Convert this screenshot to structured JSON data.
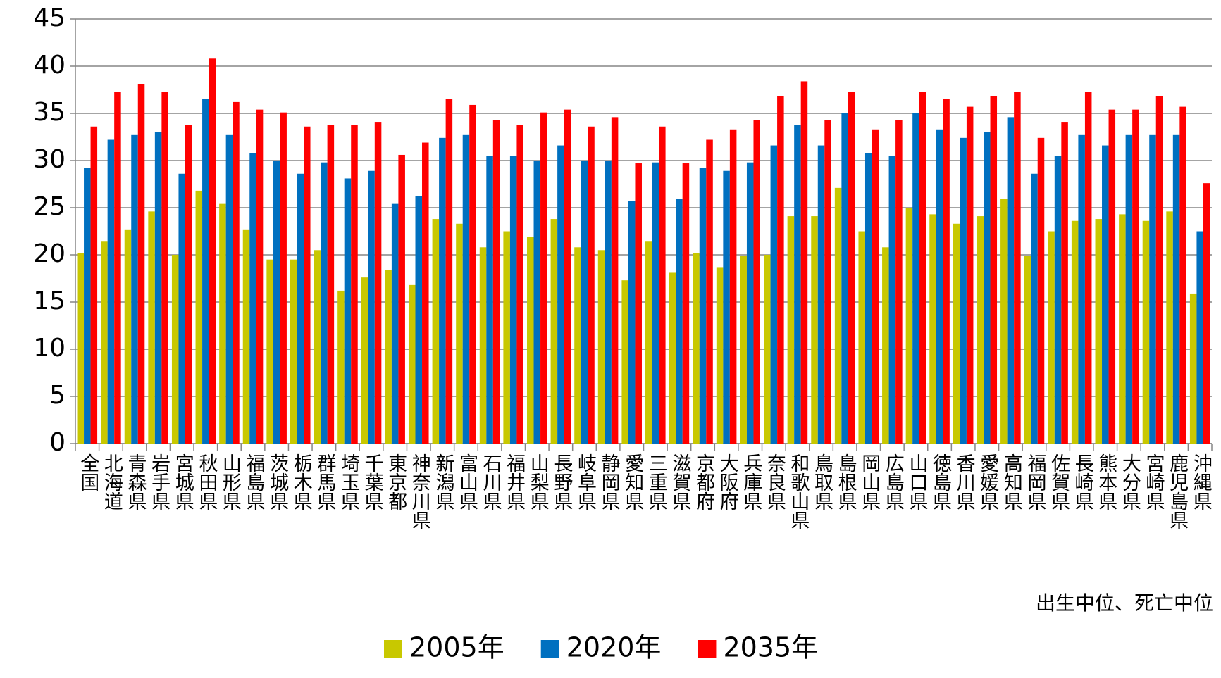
{
  "chart_data": {
    "type": "bar",
    "categories": [
      "全国",
      "北海道",
      "青森県",
      "岩手県",
      "宮城県",
      "秋田県",
      "山形県",
      "福島県",
      "茨城県",
      "栃木県",
      "群馬県",
      "埼玉県",
      "千葉県",
      "東京都",
      "神奈川県",
      "新潟県",
      "富山県",
      "石川県",
      "福井県",
      "山梨県",
      "長野県",
      "岐阜県",
      "静岡県",
      "愛知県",
      "三重県",
      "滋賀県",
      "京都府",
      "大阪府",
      "兵庫県",
      "奈良県",
      "和歌山県",
      "鳥取県",
      "島根県",
      "岡山県",
      "広島県",
      "山口県",
      "徳島県",
      "香川県",
      "愛媛県",
      "高知県",
      "福岡県",
      "佐賀県",
      "長崎県",
      "熊本県",
      "大分県",
      "宮崎県",
      "鹿児島県",
      "沖縄県"
    ],
    "series": [
      {
        "name": "2005年",
        "color": "#c8c800",
        "values": [
          20.2,
          21.4,
          22.7,
          24.6,
          20.0,
          26.8,
          25.4,
          22.7,
          19.5,
          19.5,
          20.5,
          16.2,
          17.6,
          18.4,
          16.8,
          23.8,
          23.3,
          20.8,
          22.5,
          21.9,
          23.8,
          20.8,
          20.5,
          17.3,
          21.4,
          18.1,
          20.2,
          18.7,
          19.9,
          20.0,
          24.1,
          24.1,
          27.1,
          22.5,
          20.8,
          25.0,
          24.3,
          23.3,
          24.1,
          25.9,
          19.9,
          22.5,
          23.6,
          23.8,
          24.3,
          23.6,
          24.6,
          15.9
        ]
      },
      {
        "name": "2020年",
        "color": "#0070c0",
        "values": [
          29.2,
          32.2,
          32.7,
          33.0,
          28.6,
          36.5,
          32.7,
          30.8,
          30.0,
          28.6,
          29.8,
          28.1,
          28.9,
          25.4,
          26.2,
          32.4,
          32.7,
          30.5,
          30.5,
          30.0,
          31.6,
          30.0,
          30.0,
          25.7,
          29.8,
          25.9,
          29.2,
          28.9,
          29.8,
          31.6,
          33.8,
          31.6,
          35.0,
          30.8,
          30.5,
          35.0,
          33.3,
          32.4,
          33.0,
          34.6,
          28.6,
          30.5,
          32.7,
          31.6,
          32.7,
          32.7,
          32.7,
          22.5
        ]
      },
      {
        "name": "2035年",
        "color": "#ff0000",
        "values": [
          33.6,
          37.3,
          38.1,
          37.3,
          33.8,
          40.8,
          36.2,
          35.4,
          35.1,
          33.6,
          33.8,
          33.8,
          34.1,
          30.6,
          31.9,
          36.5,
          35.9,
          34.3,
          33.8,
          35.1,
          35.4,
          33.6,
          34.6,
          29.7,
          33.6,
          29.7,
          32.2,
          33.3,
          34.3,
          36.8,
          38.4,
          34.3,
          37.3,
          33.3,
          34.3,
          37.3,
          36.5,
          35.7,
          36.8,
          37.3,
          32.4,
          34.1,
          37.3,
          35.4,
          35.4,
          36.8,
          35.7,
          27.6
        ]
      }
    ],
    "ylim": [
      0,
      45
    ],
    "yticks": [
      0,
      5,
      10,
      15,
      20,
      25,
      30,
      35,
      40,
      45
    ],
    "grid": true,
    "note": "出生中位、死亡中位",
    "legend": "bottom"
  }
}
